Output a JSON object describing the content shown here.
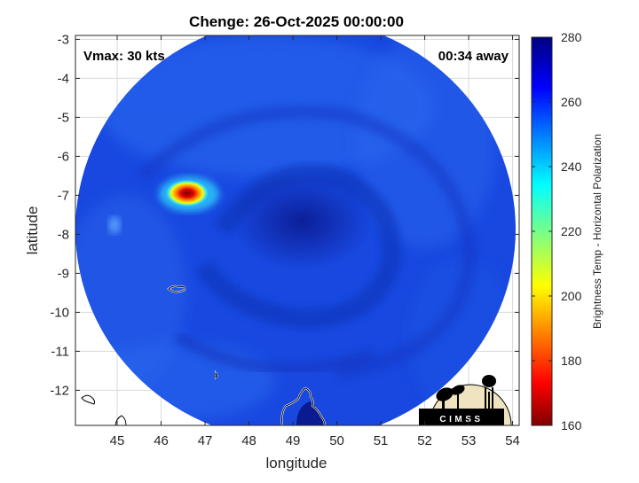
{
  "title": "Chenge: 26-Oct-2025 00:00:00",
  "vmax_label": "Vmax: 30 kts",
  "time_offset_label": "00:34 away",
  "xaxis": {
    "label": "longitude",
    "ticks": [
      "45",
      "46",
      "47",
      "48",
      "49",
      "50",
      "51",
      "52",
      "53",
      "54"
    ],
    "range": [
      44.05,
      54.15
    ]
  },
  "yaxis": {
    "label": "latitude",
    "ticks": [
      "-3",
      "-4",
      "-5",
      "-6",
      "-7",
      "-8",
      "-9",
      "-10",
      "-11",
      "-12"
    ],
    "range": [
      -12.9,
      -2.9
    ]
  },
  "colorbar": {
    "label": "Brightness Temp - Horizontal Polarization",
    "ticks": [
      "280",
      "260",
      "240",
      "220",
      "200",
      "180",
      "160"
    ],
    "range": [
      160,
      280
    ],
    "colormap": "jet"
  },
  "logo": {
    "text": "CIMSS"
  },
  "colors": {
    "disk_background": "#1440d8",
    "cold_core": "#0a1fa0",
    "convection_hot": "#b00000",
    "coastline": "#ffffff"
  }
}
